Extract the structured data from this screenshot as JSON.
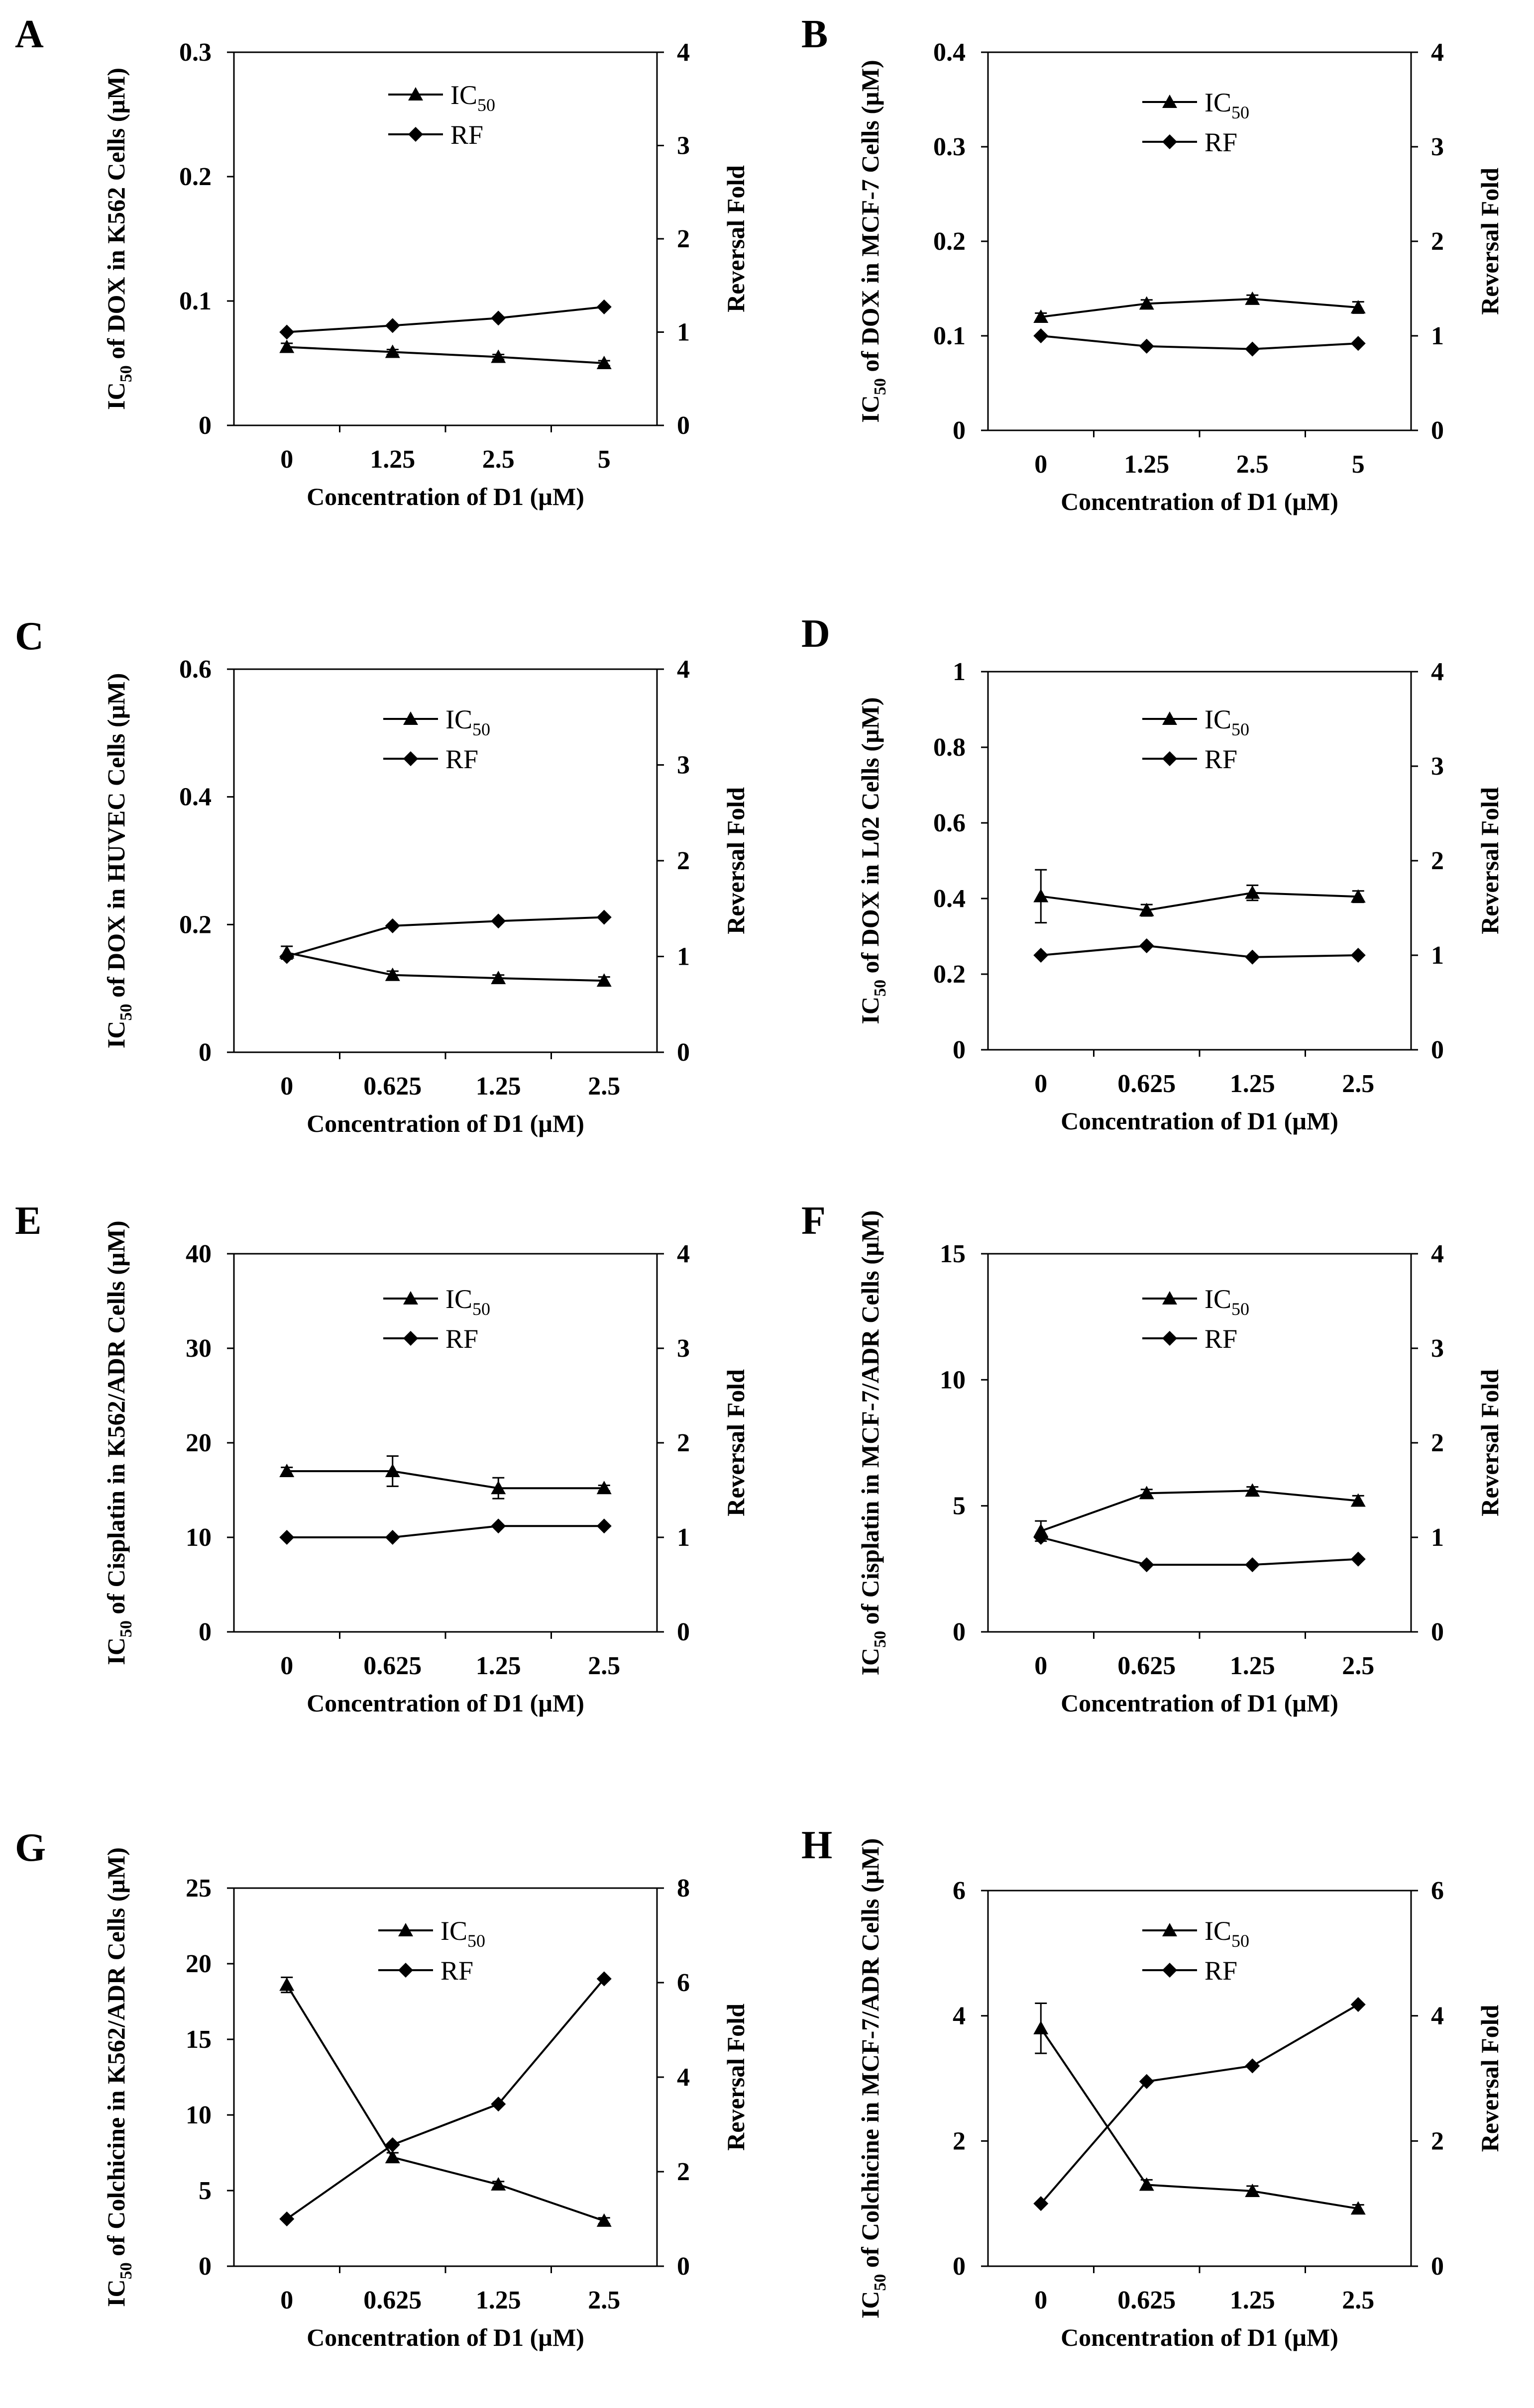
{
  "figure": {
    "panels": [
      "A",
      "B",
      "C",
      "D",
      "E",
      "F",
      "G",
      "H"
    ]
  },
  "legend_symbols": [
    "triangle-marker",
    "diamond-marker"
  ],
  "colors": {
    "line": "#000000",
    "background": "#ffffff"
  },
  "chart_data": [
    {
      "panel": "A",
      "type": "line",
      "categories": [
        "0",
        "1.25",
        "2.5",
        "5"
      ],
      "ylabel_left": {
        "main": "IC",
        "sub": "50",
        "rest": " of DOX in K562 Cells (µM)"
      },
      "ylabel_right": "Reversal Fold",
      "xlabel": {
        "pre": "Concentration of D",
        "sub": "1",
        "post": " (µM)"
      },
      "ylim": [
        0,
        0.3
      ],
      "yticks": [
        "0",
        "0.1",
        "0.2",
        "0.3"
      ],
      "y2lim": [
        0,
        4
      ],
      "y2ticks": [
        "0",
        "1",
        "2",
        "3",
        "4"
      ],
      "legend": [
        {
          "label": "IC",
          "sub": "50",
          "marker": "triangle"
        },
        {
          "label": "RF",
          "sub": "",
          "marker": "diamond"
        }
      ],
      "series": [
        {
          "name": "IC50",
          "axis": "left",
          "marker": "triangle",
          "values": [
            0.063,
            0.059,
            0.055,
            0.05
          ],
          "errors": [
            0.003,
            0.002,
            0.002,
            0.002
          ]
        },
        {
          "name": "RF",
          "axis": "right",
          "marker": "diamond",
          "values": [
            1.0,
            1.07,
            1.15,
            1.27
          ],
          "errors": [
            0,
            0,
            0,
            0
          ]
        }
      ]
    },
    {
      "panel": "B",
      "type": "line",
      "categories": [
        "0",
        "1.25",
        "2.5",
        "5"
      ],
      "ylabel_left": {
        "main": "IC",
        "sub": "50",
        "rest": " of DOX in MCF-7 Cells (µM)"
      },
      "ylabel_right": "Reversal Fold",
      "xlabel": {
        "pre": "Concentration of D",
        "sub": "1",
        "post": " (µM)"
      },
      "ylim": [
        0,
        0.4
      ],
      "yticks": [
        "0",
        "0.1",
        "0.2",
        "0.3",
        "0.4"
      ],
      "y2lim": [
        0,
        4
      ],
      "y2ticks": [
        "0",
        "1",
        "2",
        "3",
        "4"
      ],
      "legend": [
        {
          "label": "IC",
          "sub": "50",
          "marker": "triangle"
        },
        {
          "label": "RF",
          "sub": "",
          "marker": "diamond"
        }
      ],
      "series": [
        {
          "name": "IC50",
          "axis": "left",
          "marker": "triangle",
          "values": [
            0.12,
            0.134,
            0.139,
            0.13
          ],
          "errors": [
            0.004,
            0.004,
            0.004,
            0.006
          ]
        },
        {
          "name": "RF",
          "axis": "right",
          "marker": "diamond",
          "values": [
            1.0,
            0.89,
            0.86,
            0.92
          ],
          "errors": [
            0,
            0,
            0,
            0
          ]
        }
      ]
    },
    {
      "panel": "C",
      "type": "line",
      "categories": [
        "0",
        "0.625",
        "1.25",
        "2.5"
      ],
      "ylabel_left": {
        "main": "IC",
        "sub": "50",
        "rest": " of DOX in HUVEC Cells (µM)"
      },
      "ylabel_right": "Reversal Fold",
      "xlabel": {
        "pre": "Concentration of D",
        "sub": "1",
        "post": " (µM)"
      },
      "ylim": [
        0,
        0.6
      ],
      "yticks": [
        "0",
        "0.2",
        "0.4",
        "0.6"
      ],
      "y2lim": [
        0,
        4
      ],
      "y2ticks": [
        "0",
        "1",
        "2",
        "3",
        "4"
      ],
      "legend": [
        {
          "label": "IC",
          "sub": "50",
          "marker": "triangle"
        },
        {
          "label": "RF",
          "sub": "",
          "marker": "diamond"
        }
      ],
      "series": [
        {
          "name": "IC50",
          "axis": "left",
          "marker": "triangle",
          "values": [
            0.156,
            0.121,
            0.116,
            0.112
          ],
          "errors": [
            0.01,
            0.006,
            0.005,
            0.006
          ]
        },
        {
          "name": "RF",
          "axis": "right",
          "marker": "diamond",
          "values": [
            1.0,
            1.32,
            1.37,
            1.41
          ],
          "errors": [
            0,
            0,
            0,
            0
          ]
        }
      ]
    },
    {
      "panel": "D",
      "type": "line",
      "categories": [
        "0",
        "0.625",
        "1.25",
        "2.5"
      ],
      "ylabel_left": {
        "main": "IC",
        "sub": "50",
        "rest": " of DOX in L02 Cells (µM)"
      },
      "ylabel_right": "Reversal Fold",
      "xlabel": {
        "pre": "Concentration of D",
        "sub": "1",
        "post": " (µM)"
      },
      "ylim": [
        0,
        1
      ],
      "yticks": [
        "0",
        "0.2",
        "0.4",
        "0.6",
        "0.8",
        "1"
      ],
      "y2lim": [
        0,
        4
      ],
      "y2ticks": [
        "0",
        "1",
        "2",
        "3",
        "4"
      ],
      "legend": [
        {
          "label": "IC",
          "sub": "50",
          "marker": "triangle"
        },
        {
          "label": "RF",
          "sub": "",
          "marker": "diamond"
        }
      ],
      "series": [
        {
          "name": "IC50",
          "axis": "left",
          "marker": "triangle",
          "values": [
            0.406,
            0.369,
            0.415,
            0.405
          ],
          "errors": [
            0.07,
            0.015,
            0.02,
            0.015
          ]
        },
        {
          "name": "RF",
          "axis": "right",
          "marker": "diamond",
          "values": [
            1.0,
            1.1,
            0.98,
            1.0
          ],
          "errors": [
            0,
            0,
            0,
            0
          ]
        }
      ]
    },
    {
      "panel": "E",
      "type": "line",
      "categories": [
        "0",
        "0.625",
        "1.25",
        "2.5"
      ],
      "ylabel_left": {
        "main": "IC",
        "sub": "50",
        "rest": " of Cisplatin in K562/ADR Cells (µM)"
      },
      "ylabel_right": "Reversal Fold",
      "xlabel": {
        "pre": "Concentration of D",
        "sub": "1",
        "post": " (µM)"
      },
      "ylim": [
        0,
        40
      ],
      "yticks": [
        "0",
        "10",
        "20",
        "30",
        "40"
      ],
      "y2lim": [
        0,
        4
      ],
      "y2ticks": [
        "0",
        "1",
        "2",
        "3",
        "4"
      ],
      "legend": [
        {
          "label": "IC",
          "sub": "50",
          "marker": "triangle"
        },
        {
          "label": "RF",
          "sub": "",
          "marker": "diamond"
        }
      ],
      "series": [
        {
          "name": "IC50",
          "axis": "left",
          "marker": "triangle",
          "values": [
            17.0,
            17.0,
            15.2,
            15.2
          ],
          "errors": [
            0.4,
            1.6,
            1.1,
            0.3
          ]
        },
        {
          "name": "RF",
          "axis": "right",
          "marker": "diamond",
          "values": [
            1.0,
            1.0,
            1.12,
            1.12
          ],
          "errors": [
            0,
            0,
            0,
            0
          ]
        }
      ]
    },
    {
      "panel": "F",
      "type": "line",
      "categories": [
        "0",
        "0.625",
        "1.25",
        "2.5"
      ],
      "ylabel_left": {
        "main": "IC",
        "sub": "50",
        "rest": " of Cisplatin in MCF-7/ADR Cells (µM)"
      },
      "ylabel_right": "Reversal Fold",
      "xlabel": {
        "pre": "Concentration of D",
        "sub": "1",
        "post": " (µM)"
      },
      "ylim": [
        0,
        15
      ],
      "yticks": [
        "0",
        "5",
        "10",
        "15"
      ],
      "y2lim": [
        0,
        4
      ],
      "y2ticks": [
        "0",
        "1",
        "2",
        "3",
        "4"
      ],
      "legend": [
        {
          "label": "IC",
          "sub": "50",
          "marker": "triangle"
        },
        {
          "label": "RF",
          "sub": "",
          "marker": "diamond"
        }
      ],
      "series": [
        {
          "name": "IC50",
          "axis": "left",
          "marker": "triangle",
          "values": [
            4.0,
            5.5,
            5.6,
            5.2
          ],
          "errors": [
            0.4,
            0.15,
            0.15,
            0.2
          ]
        },
        {
          "name": "RF",
          "axis": "right",
          "marker": "diamond",
          "values": [
            1.0,
            0.71,
            0.71,
            0.77
          ],
          "errors": [
            0,
            0,
            0,
            0
          ]
        }
      ]
    },
    {
      "panel": "G",
      "type": "line",
      "categories": [
        "0",
        "0.625",
        "1.25",
        "2.5"
      ],
      "ylabel_left": {
        "main": "IC",
        "sub": "50",
        "rest": " of Colchicine in K562/ADR Cells (µM)"
      },
      "ylabel_right": "Reversal Fold",
      "xlabel": {
        "pre": "Concentration of D",
        "sub": "1",
        "post": " (µM)"
      },
      "ylim": [
        0,
        25
      ],
      "yticks": [
        "0",
        "5",
        "10",
        "15",
        "20",
        "25"
      ],
      "y2lim": [
        0,
        8
      ],
      "y2ticks": [
        "0",
        "2",
        "4",
        "6",
        "8"
      ],
      "legend": [
        {
          "label": "IC",
          "sub": "50",
          "marker": "triangle"
        },
        {
          "label": "RF",
          "sub": "",
          "marker": "diamond"
        }
      ],
      "series": [
        {
          "name": "IC50",
          "axis": "left",
          "marker": "triangle",
          "values": [
            18.6,
            7.2,
            5.4,
            3.0
          ],
          "errors": [
            0.5,
            0.3,
            0.2,
            0.2
          ]
        },
        {
          "name": "RF",
          "axis": "right",
          "marker": "diamond",
          "values": [
            1.0,
            2.57,
            3.43,
            6.08
          ],
          "errors": [
            0,
            0,
            0,
            0
          ]
        }
      ]
    },
    {
      "panel": "H",
      "type": "line",
      "categories": [
        "0",
        "0.625",
        "1.25",
        "2.5"
      ],
      "ylabel_left": {
        "main": "IC",
        "sub": "50",
        "rest": " of Colchicine in MCF-7/ADR Cells (µM)"
      },
      "ylabel_right": "Reversal Fold",
      "xlabel": {
        "pre": "Concentration of D",
        "sub": "1",
        "post": " (µM)"
      },
      "ylim": [
        0,
        6
      ],
      "yticks": [
        "0",
        "2",
        "4",
        "6"
      ],
      "y2lim": [
        0,
        6
      ],
      "y2ticks": [
        "0",
        "2",
        "4",
        "6"
      ],
      "legend": [
        {
          "label": "IC",
          "sub": "50",
          "marker": "triangle"
        },
        {
          "label": "RF",
          "sub": "",
          "marker": "diamond"
        }
      ],
      "series": [
        {
          "name": "IC50",
          "axis": "left",
          "marker": "triangle",
          "values": [
            3.8,
            1.3,
            1.2,
            0.92
          ],
          "errors": [
            0.4,
            0.08,
            0.08,
            0.06
          ]
        },
        {
          "name": "RF",
          "axis": "right",
          "marker": "diamond",
          "values": [
            1.0,
            2.95,
            3.2,
            4.18
          ],
          "errors": [
            0,
            0,
            0,
            0
          ]
        }
      ]
    }
  ]
}
